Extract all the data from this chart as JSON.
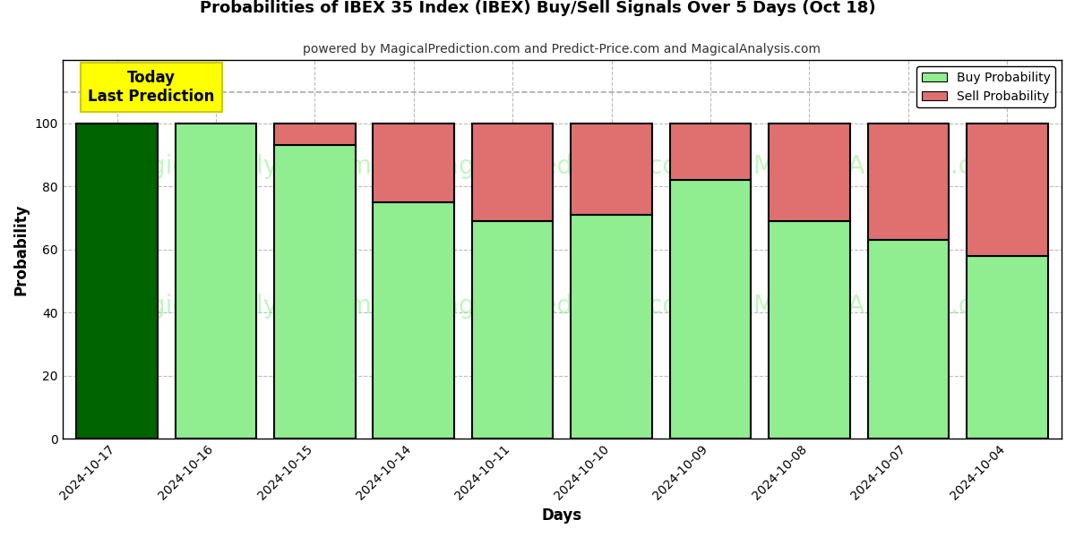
{
  "title": "Probabilities of IBEX 35 Index (IBEX) Buy/Sell Signals Over 5 Days (Oct 18)",
  "subtitle": "powered by MagicalPrediction.com and Predict-Price.com and MagicalAnalysis.com",
  "xlabel": "Days",
  "ylabel": "Probability",
  "dates": [
    "2024-10-17",
    "2024-10-16",
    "2024-10-15",
    "2024-10-14",
    "2024-10-11",
    "2024-10-10",
    "2024-10-09",
    "2024-10-08",
    "2024-10-07",
    "2024-10-04"
  ],
  "buy_probs": [
    100,
    100,
    93,
    75,
    69,
    71,
    82,
    69,
    63,
    58
  ],
  "sell_probs": [
    0,
    0,
    7,
    25,
    31,
    29,
    18,
    31,
    37,
    42
  ],
  "today_bar_color": "#006400",
  "buy_color": "#90EE90",
  "sell_color": "#E07070",
  "today_annotation_text": "Today\nLast Prediction",
  "today_annotation_bg": "#FFFF00",
  "legend_buy_label": "Buy Probability",
  "legend_sell_label": "Sell Probability",
  "ylim_max": 120,
  "yticks": [
    0,
    20,
    40,
    60,
    80,
    100
  ],
  "dashed_line_y": 110,
  "bar_edge_color": "black",
  "bar_linewidth": 1.5,
  "grid_color": "#aaaaaa",
  "grid_linestyle": "--",
  "grid_alpha": 0.8,
  "background_color": "#ffffff",
  "plot_bg_color": "#ffffff",
  "watermark_color": "#90EE90",
  "watermark_alpha": 0.55,
  "watermark_fontsize": 20
}
